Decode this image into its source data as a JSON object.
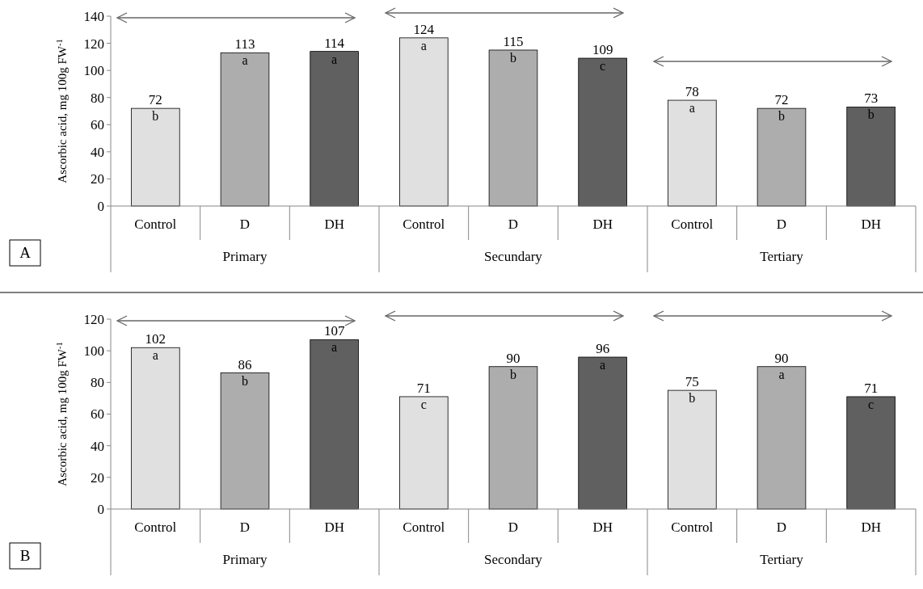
{
  "chart_data": [
    {
      "type": "bar",
      "ylabel": "Ascorbic acid, mg 100g FW$^{-1}$",
      "categories": [
        "Control",
        "D",
        "DH",
        "Control",
        "D",
        "DH",
        "Control",
        "D",
        "DH"
      ],
      "values": [
        72,
        113,
        114,
        124,
        115,
        109,
        78,
        72,
        73
      ],
      "colors": [
        "#e0e0e0",
        "#adadad",
        "#606060",
        "#e0e0e0",
        "#adadad",
        "#606060",
        "#e0e0e0",
        "#adadad",
        "#606060"
      ],
      "ylim": [
        0,
        140
      ],
      "yticks": [
        0,
        20,
        40,
        60,
        80,
        100,
        120,
        140
      ],
      "data_labels": true,
      "annotations": [
        "A",
        "Primary",
        "Secundary",
        "Tertiary",
        "b",
        "a",
        "a",
        "a",
        "b",
        "c",
        "a",
        "b",
        "b"
      ]
    },
    {
      "type": "bar",
      "ylabel": "Ascorbic acid, mg 100g FW$^{-1}$",
      "categories": [
        "Control",
        "D",
        "DH",
        "Control",
        "D",
        "DH",
        "Control",
        "D",
        "DH"
      ],
      "values": [
        102,
        86,
        107,
        71,
        90,
        96,
        75,
        90,
        71
      ],
      "colors": [
        "#e0e0e0",
        "#adadad",
        "#606060",
        "#e0e0e0",
        "#adadad",
        "#606060",
        "#e0e0e0",
        "#adadad",
        "#606060"
      ],
      "ylim": [
        0,
        120
      ],
      "yticks": [
        0,
        20,
        40,
        60,
        80,
        100,
        120
      ],
      "data_labels": true,
      "annotations": [
        "B",
        "Primary",
        "Secondary",
        "Tertiary",
        "a",
        "b",
        "a",
        "c",
        "b",
        "a",
        "b",
        "a",
        "c"
      ]
    }
  ]
}
